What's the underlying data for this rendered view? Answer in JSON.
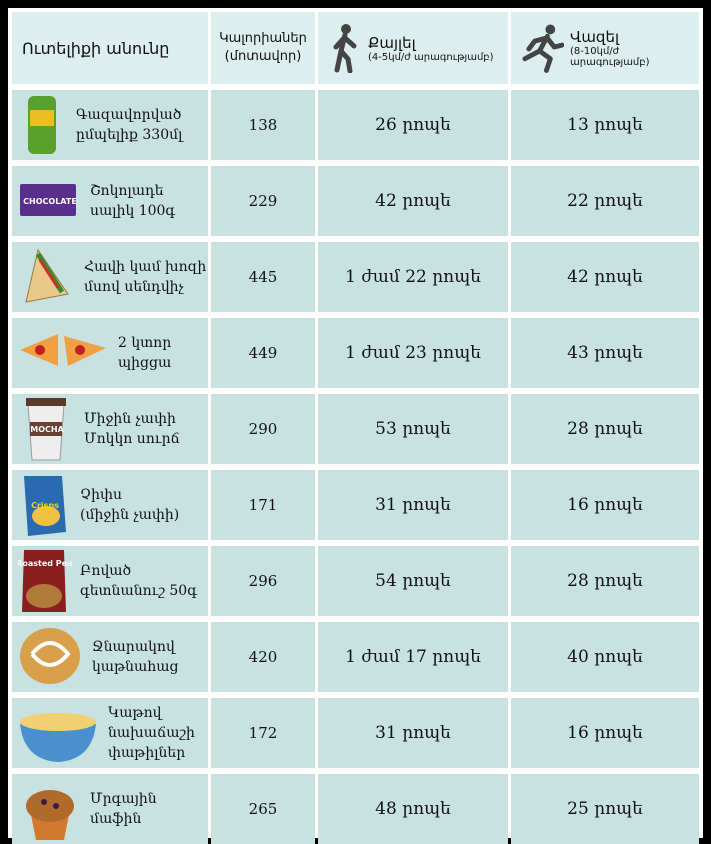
{
  "table": {
    "header": [
      "Ուտելիքի անունը",
      [
        "Կալորիաներ",
        "(մոտավոր)"
      ],
      [
        "Քայլել",
        "(4-5կմ/ժ արագությամբ)"
      ],
      [
        "Վազել",
        "(8-10կմ/ժ արագությամբ)"
      ]
    ],
    "rows": [
      [
        [
          "Գազավորված",
          "ըմպելիք 330մլ"
        ],
        138,
        "26 րոպե",
        "13 րոպե"
      ],
      [
        [
          "Շոկոլադե",
          "սալիկ 100գ"
        ],
        229,
        "42 րոպե",
        "22 րոպե"
      ],
      [
        [
          "Հավի կամ խոզի",
          "մսով սենդվիչ"
        ],
        445,
        "1 ժամ 22 րոպե",
        "42 րոպե"
      ],
      [
        [
          "2 կտոր",
          "պիցցա"
        ],
        449,
        "1 ժամ 23 րոպե",
        "43 րոպե"
      ],
      [
        [
          "Միջին չափի",
          "Մոկկո սուրճ"
        ],
        290,
        "53 րոպե",
        "28 րոպե"
      ],
      [
        [
          "Չիփս",
          "(միջին չափի)"
        ],
        171,
        "31 րոպե",
        "16 րոպե"
      ],
      [
        [
          "Բոված",
          "գետնանուշ 50գ"
        ],
        296,
        "54 րոպե",
        "28 րոպե"
      ],
      [
        [
          "Ջնարակով",
          "կաթնահաց"
        ],
        420,
        "1 ժամ 17 րոպե",
        "40 րոպե"
      ],
      [
        [
          "Կաթով",
          "նախաճաշի",
          "փաթիլներ"
        ],
        172,
        "31 րոպե",
        "16 րոպե"
      ],
      [
        [
          "Մրգային մաֆին"
        ],
        265,
        "48 րոպե",
        "25 րոպե"
      ]
    ],
    "icon_labels": {
      "1": "CHOCOLATE",
      "4": "MOCHA",
      "5": "Crisps",
      "6": "Dry Roasted Peanuts"
    }
  }
}
